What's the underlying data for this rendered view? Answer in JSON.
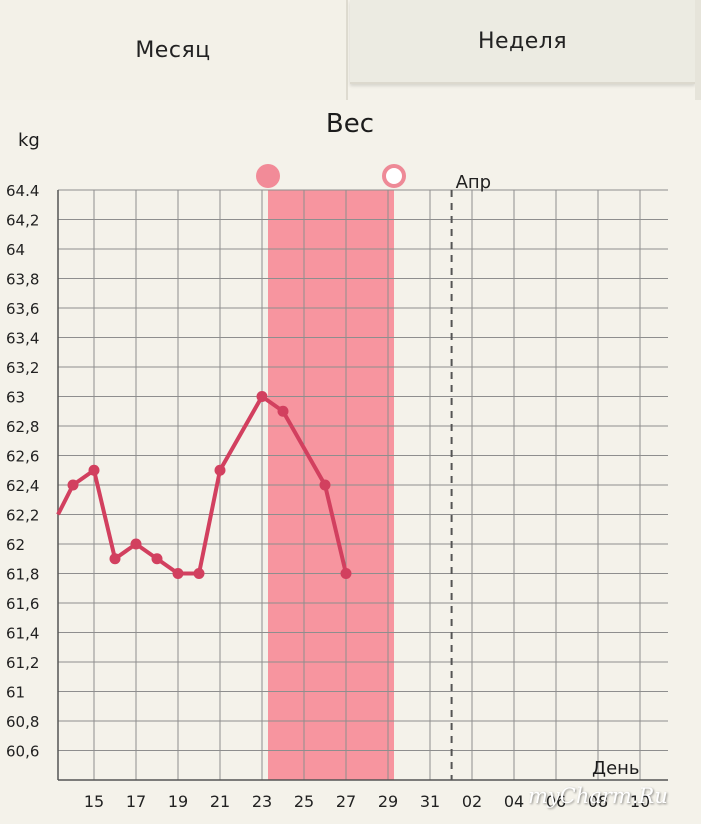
{
  "tabs": {
    "month": "Месяц",
    "week": "Неделя"
  },
  "watermark": "myCharm.Ru",
  "chart_data": {
    "type": "line",
    "title": "Вес",
    "ylabel": "kg",
    "xlabel": "День",
    "ylim": [
      60.4,
      64.4
    ],
    "y_ticks": [
      "64.4",
      "64,2",
      "64",
      "63,8",
      "63,6",
      "63,4",
      "63,2",
      "63",
      "62,8",
      "62,6",
      "62,4",
      "62,2",
      "62",
      "61,8",
      "61,6",
      "61,4",
      "61,2",
      "61",
      "60,8",
      "60,6"
    ],
    "x_tick_labels": [
      "15",
      "17",
      "19",
      "21",
      "23",
      "25",
      "27",
      "29",
      "31",
      "02",
      "04",
      "06",
      "08",
      "10"
    ],
    "month_marker": "Апр",
    "grid": true,
    "highlight_range": [
      "23",
      "29"
    ],
    "line_color": "#d2405f",
    "highlight_color": "#f7959f",
    "series": [
      {
        "days": [
          "13",
          "14",
          "15",
          "16",
          "17",
          "18",
          "19",
          "20",
          "21",
          "23",
          "24",
          "26",
          "27"
        ],
        "values": [
          62.2,
          62.4,
          62.5,
          61.9,
          62.0,
          61.9,
          61.8,
          61.8,
          62.5,
          63.0,
          62.9,
          62.4,
          61.8
        ]
      }
    ]
  }
}
